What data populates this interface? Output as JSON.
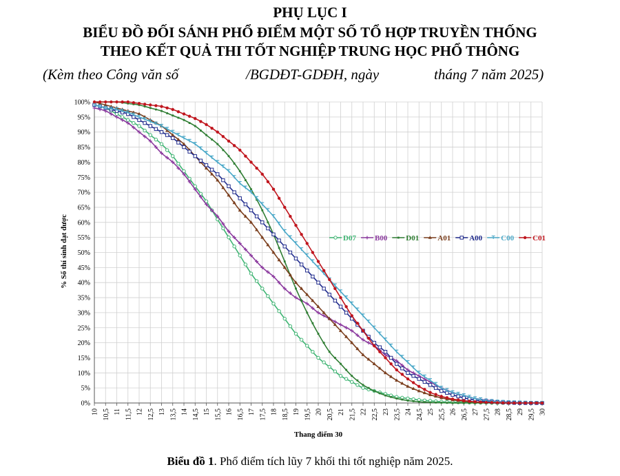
{
  "header": {
    "line1": "PHỤ LỤC I",
    "line2": "BIỂU ĐỒ ĐỐI SÁNH PHỔ ĐIỂM MỘT SỐ TỔ HỢP TRUYỀN THỐNG",
    "line3": "THEO KẾT QUẢ THI TỐT NGHIỆP TRUNG HỌC PHỔ THÔNG",
    "sub_a": "(Kèm theo Công văn số",
    "sub_b": "/BGDĐT-GDĐH, ngày",
    "sub_c": "tháng 7 năm 2025)"
  },
  "caption": {
    "bold": "Biểu đồ 1",
    "rest": ". Phổ điểm tích lũy 7 khối thi tốt nghiệp năm 2025."
  },
  "chart_data": {
    "type": "line",
    "xlabel": "Thang điểm 30",
    "ylabel": "% Số thí sinh đạt được",
    "x": [
      10,
      10.5,
      11,
      11.5,
      12,
      12.5,
      13,
      13.5,
      14,
      14.5,
      15,
      15.5,
      16,
      16.5,
      17,
      17.5,
      18,
      18.5,
      19,
      19.5,
      20,
      20.5,
      21,
      21.5,
      22,
      22.5,
      23,
      23.5,
      24,
      24.5,
      25,
      25.5,
      26,
      26.5,
      27,
      27.5,
      28,
      28.5,
      29,
      29.5,
      30
    ],
    "x_tick_labels": [
      "10",
      "10,5",
      "11",
      "11,5",
      "12",
      "12,5",
      "13",
      "13,5",
      "14",
      "14,5",
      "15",
      "15,5",
      "16",
      "16,5",
      "17",
      "17,5",
      "18",
      "18,5",
      "19",
      "19,5",
      "20",
      "20,5",
      "21",
      "21,5",
      "22",
      "22,5",
      "23",
      "23,5",
      "24",
      "24,5",
      "25",
      "25,5",
      "26",
      "26,5",
      "27",
      "27,5",
      "28",
      "28,5",
      "29",
      "29,5",
      "30"
    ],
    "xlim": [
      10,
      30
    ],
    "ylim": [
      0,
      100
    ],
    "y_ticks": [
      0,
      5,
      10,
      15,
      20,
      25,
      30,
      35,
      40,
      45,
      50,
      55,
      60,
      65,
      70,
      75,
      80,
      85,
      90,
      95,
      100
    ],
    "y_unit": "%",
    "grid": true,
    "legend_position": "right",
    "series": [
      {
        "name": "D07",
        "color": "#3cb371",
        "marker": "open-circle",
        "values": [
          99,
          98,
          96,
          94,
          92,
          89,
          86,
          82,
          77,
          72,
          67,
          61,
          55,
          49,
          43,
          38,
          33,
          28,
          23,
          19,
          15,
          12,
          9,
          7,
          5,
          4,
          3,
          2,
          1.5,
          1,
          0.7,
          0.4,
          0.3,
          0.2,
          0.1,
          0.1,
          0,
          0,
          0,
          0,
          0
        ]
      },
      {
        "name": "B00",
        "color": "#8b3a9e",
        "marker": "plus",
        "values": [
          98,
          97,
          95,
          93,
          90,
          87,
          83,
          80,
          76,
          71,
          66,
          62,
          57,
          53,
          49,
          45,
          42,
          38,
          35,
          33,
          30,
          28,
          26,
          24,
          21,
          19,
          16,
          14,
          11,
          9,
          7,
          5,
          3.5,
          2.5,
          1.5,
          1,
          0.5,
          0.3,
          0.1,
          0,
          0
        ]
      },
      {
        "name": "D01",
        "color": "#2e7d32",
        "marker": "line",
        "values": [
          100,
          100,
          100,
          99.5,
          99,
          98,
          97,
          95.5,
          94,
          92,
          89,
          86,
          82,
          77,
          71,
          64,
          56,
          47,
          38,
          30,
          23,
          17,
          13,
          9,
          6,
          4,
          2.5,
          1.5,
          0.8,
          0.4,
          0.2,
          0.1,
          0,
          0,
          0,
          0,
          0,
          0,
          0,
          0,
          0
        ]
      },
      {
        "name": "A01",
        "color": "#7b3f1e",
        "marker": "triangle",
        "values": [
          100,
          99,
          98,
          97,
          96,
          94,
          92,
          89,
          86,
          82,
          78,
          74,
          69,
          64,
          60,
          55,
          50,
          45,
          40,
          36,
          32,
          28,
          24,
          20,
          16,
          13,
          10,
          7.5,
          5.5,
          4,
          2.7,
          1.7,
          1,
          0.6,
          0.3,
          0.2,
          0.1,
          0,
          0,
          0,
          0
        ]
      },
      {
        "name": "A00",
        "color": "#1f2a8c",
        "marker": "open-square",
        "values": [
          99,
          98,
          97,
          96,
          94,
          92,
          90,
          88,
          85,
          82,
          79,
          76,
          72,
          68,
          64,
          60,
          56,
          52,
          48,
          44,
          40,
          36,
          32,
          28,
          24,
          20,
          17,
          13,
          10,
          8,
          6,
          4,
          2.7,
          1.7,
          1,
          0.5,
          0.3,
          0.1,
          0,
          0,
          0
        ]
      },
      {
        "name": "C00",
        "color": "#4aa8c8",
        "marker": "tee",
        "values": [
          99,
          98,
          97.5,
          96.5,
          95,
          93.5,
          92,
          90,
          88,
          86,
          83,
          80,
          77,
          73,
          70,
          66,
          62,
          57,
          53,
          49,
          45,
          41,
          37,
          33,
          29,
          25,
          21,
          17,
          13.5,
          10,
          7.5,
          5,
          3.5,
          2.5,
          1.5,
          0.8,
          0.4,
          0.2,
          0.1,
          0,
          0
        ]
      },
      {
        "name": "C01",
        "color": "#c0161e",
        "marker": "dot",
        "values": [
          100,
          100,
          100,
          100,
          99.5,
          99,
          98.5,
          97.5,
          96,
          94.5,
          92.5,
          90,
          87,
          84,
          80,
          76,
          71,
          65,
          59,
          53,
          47,
          41,
          35,
          29,
          24,
          19,
          15,
          11,
          8,
          5.5,
          3.5,
          2.2,
          1.3,
          0.8,
          0.4,
          0.2,
          0.1,
          0,
          0,
          0,
          0
        ]
      }
    ]
  }
}
